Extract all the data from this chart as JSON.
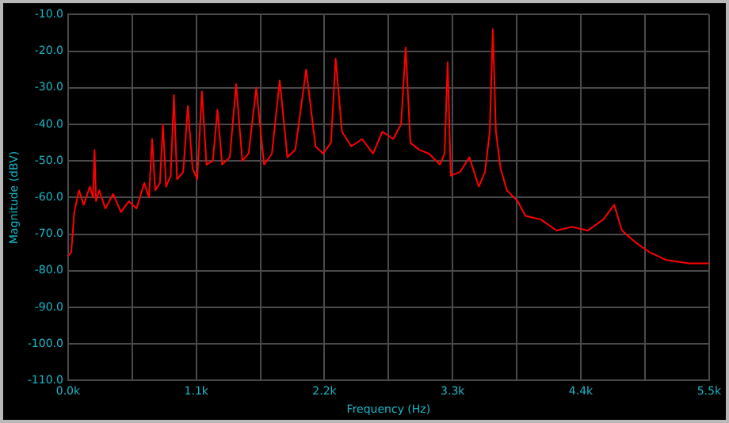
{
  "chart_data": {
    "type": "line",
    "xlabel": "Frequency (Hz)",
    "ylabel": "Magnitude (dBV)",
    "xlim": [
      0,
      5500
    ],
    "xticks": [
      {
        "value": 0,
        "label": "0.0k"
      },
      {
        "value": 550,
        "label": null
      },
      {
        "value": 1100,
        "label": "1.1k"
      },
      {
        "value": 1650,
        "label": null
      },
      {
        "value": 2200,
        "label": "2.2k"
      },
      {
        "value": 2750,
        "label": null
      },
      {
        "value": 3300,
        "label": "3.3k"
      },
      {
        "value": 3850,
        "label": null
      },
      {
        "value": 4400,
        "label": "4.4k"
      },
      {
        "value": 4950,
        "label": null
      },
      {
        "value": 5500,
        "label": "5.5k"
      }
    ],
    "ylim": [
      -110,
      -10
    ],
    "yticks": [
      {
        "value": -110,
        "label": "-110.0"
      },
      {
        "value": -100,
        "label": "-100.0"
      },
      {
        "value": -90,
        "label": "-90.0"
      },
      {
        "value": -80,
        "label": "-80.0"
      },
      {
        "value": -70,
        "label": "-70.0"
      },
      {
        "value": -60,
        "label": "-60.0"
      },
      {
        "value": -50,
        "label": "-50.0"
      },
      {
        "value": -40,
        "label": "-40.0"
      },
      {
        "value": -30,
        "label": "-30.0"
      },
      {
        "value": -20,
        "label": "-20.0"
      },
      {
        "value": -10,
        "label": "-10.0"
      }
    ],
    "grid": true,
    "legend": false,
    "marker": "none",
    "line_style": "solid",
    "series": [
      {
        "color": "#ff0000",
        "x": [
          0,
          27,
          53,
          93,
          134,
          187,
          214,
          227,
          240,
          267,
          320,
          387,
          454,
          521,
          587,
          654,
          694,
          721,
          748,
          788,
          814,
          841,
          881,
          908,
          935,
          988,
          1028,
          1068,
          1108,
          1148,
          1188,
          1242,
          1282,
          1322,
          1388,
          1442,
          1495,
          1549,
          1615,
          1682,
          1749,
          1816,
          1882,
          1949,
          2043,
          2123,
          2189,
          2256,
          2296,
          2350,
          2430,
          2523,
          2617,
          2697,
          2790,
          2857,
          2897,
          2937,
          3017,
          3097,
          3191,
          3231,
          3257,
          3284,
          3364,
          3444,
          3524,
          3578,
          3618,
          3645,
          3671,
          3711,
          3765,
          3858,
          3925,
          4058,
          4192,
          4325,
          4459,
          4592,
          4686,
          4753,
          4859,
          4993,
          5126,
          5327,
          5500
        ],
        "values": [
          -76,
          -75,
          -64,
          -58,
          -62,
          -57,
          -60,
          -47,
          -61,
          -58,
          -63,
          -59,
          -64,
          -61,
          -63,
          -56,
          -60,
          -44,
          -58,
          -56,
          -40,
          -57,
          -54,
          -32,
          -55,
          -53,
          -35,
          -52,
          -55,
          -31,
          -51,
          -50,
          -36,
          -51,
          -49,
          -29,
          -50,
          -48,
          -30,
          -51,
          -48,
          -28,
          -49,
          -47,
          -25,
          -46,
          -48,
          -45,
          -22,
          -42,
          -46,
          -44,
          -48,
          -42,
          -44,
          -40,
          -19,
          -45,
          -47,
          -48,
          -51,
          -48,
          -23,
          -54,
          -53,
          -49,
          -57,
          -53,
          -42,
          -14,
          -42,
          -52,
          -58,
          -61,
          -65,
          -66,
          -69,
          -68,
          -69,
          -66,
          -62,
          -69,
          -72,
          -75,
          -77,
          -78,
          -78
        ]
      }
    ]
  }
}
